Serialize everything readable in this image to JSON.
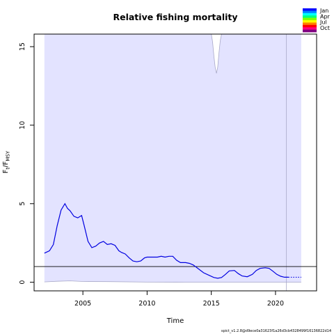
{
  "chart_data": {
    "type": "line",
    "title": "Relative fishing mortality",
    "xlabel": "Time",
    "ylabel": {
      "base": "F",
      "sub1": "t",
      "sep": "/F",
      "sub2": "MSY"
    },
    "xlim": [
      2001.2,
      2023.2
    ],
    "ylim": [
      -0.55,
      15.8
    ],
    "x_ticks": [
      2005,
      2010,
      2015,
      2020
    ],
    "y_ticks": [
      0,
      5,
      10,
      15
    ],
    "grid": false,
    "reference_line": {
      "y": 1.0,
      "color": "#000000"
    },
    "ci_fill_color": "#e3e3ff",
    "ci_line_color": "#a8a8c8",
    "series_color": "#0000e0",
    "ci_upper_clipped": true,
    "ci_upper_dip": {
      "x": [
        2015.0,
        2015.1,
        2015.2,
        2015.3,
        2015.4,
        2015.5,
        2015.6,
        2015.7,
        2015.8
      ],
      "y": [
        15.8,
        15.3,
        14.4,
        13.7,
        13.3,
        13.7,
        14.6,
        15.4,
        15.8
      ]
    },
    "ci_x_range": [
      2002.0,
      2022.0
    ],
    "ci_lower": {
      "x": [
        2002.0,
        2003.0,
        2004.0,
        2005.0,
        2007.0,
        2010.0,
        2013.0,
        2016.0,
        2019.0,
        2021.0,
        2022.0
      ],
      "y": [
        0.02,
        0.06,
        0.09,
        0.05,
        0.04,
        0.01,
        0.0,
        0.0,
        0.0,
        0.0,
        0.0
      ]
    },
    "vline": {
      "x": 2020.85
    },
    "series": [
      {
        "x": [
          2002.0,
          2002.4,
          2002.7,
          2003.0,
          2003.3,
          2003.6,
          2003.8,
          2004.0,
          2004.3,
          2004.6,
          2004.9,
          2005.1,
          2005.4,
          2005.7,
          2006.0,
          2006.3,
          2006.6,
          2006.9,
          2007.2,
          2007.5,
          2007.8,
          2008.0,
          2008.3,
          2008.6,
          2008.9,
          2009.2,
          2009.5,
          2009.8,
          2010.0,
          2010.4,
          2010.8,
          2011.1,
          2011.4,
          2011.7,
          2012.0,
          2012.3,
          2012.6,
          2013.0,
          2013.3,
          2013.6,
          2014.0,
          2014.4,
          2014.8,
          2015.2,
          2015.5,
          2015.8,
          2016.1,
          2016.4,
          2016.8,
          2017.1,
          2017.4,
          2017.8,
          2018.2,
          2018.5,
          2018.8,
          2019.2,
          2019.5,
          2019.8,
          2020.1,
          2020.4,
          2020.7,
          2021.0
        ],
        "y": [
          1.85,
          2.0,
          2.4,
          3.6,
          4.6,
          5.0,
          4.7,
          4.55,
          4.2,
          4.1,
          4.25,
          3.6,
          2.6,
          2.2,
          2.3,
          2.5,
          2.6,
          2.4,
          2.45,
          2.35,
          2.0,
          1.9,
          1.8,
          1.55,
          1.35,
          1.3,
          1.35,
          1.55,
          1.6,
          1.6,
          1.6,
          1.65,
          1.6,
          1.65,
          1.65,
          1.4,
          1.25,
          1.25,
          1.2,
          1.1,
          0.85,
          0.6,
          0.45,
          0.3,
          0.25,
          0.3,
          0.5,
          0.72,
          0.75,
          0.55,
          0.4,
          0.35,
          0.5,
          0.75,
          0.88,
          0.92,
          0.88,
          0.7,
          0.5,
          0.38,
          0.32,
          0.32
        ]
      },
      {
        "x": [
          2021.0,
          2021.5,
          2022.0
        ],
        "y": [
          0.32,
          0.32,
          0.32
        ]
      }
    ],
    "legend": {
      "placement": "top-right",
      "labels": [
        "Jan",
        "Apr",
        "Jul",
        "Oct"
      ],
      "colors": [
        "#0000ff",
        "#0080ff",
        "#00ffff",
        "#00ff80",
        "#80ff00",
        "#ffff00",
        "#ff8000",
        "#ff0000",
        "#ff0080",
        "#800080"
      ]
    },
    "footnote": "spict_v1.2.8@d9ece0a31623f1a26d3cb4328499f16136822d14"
  }
}
